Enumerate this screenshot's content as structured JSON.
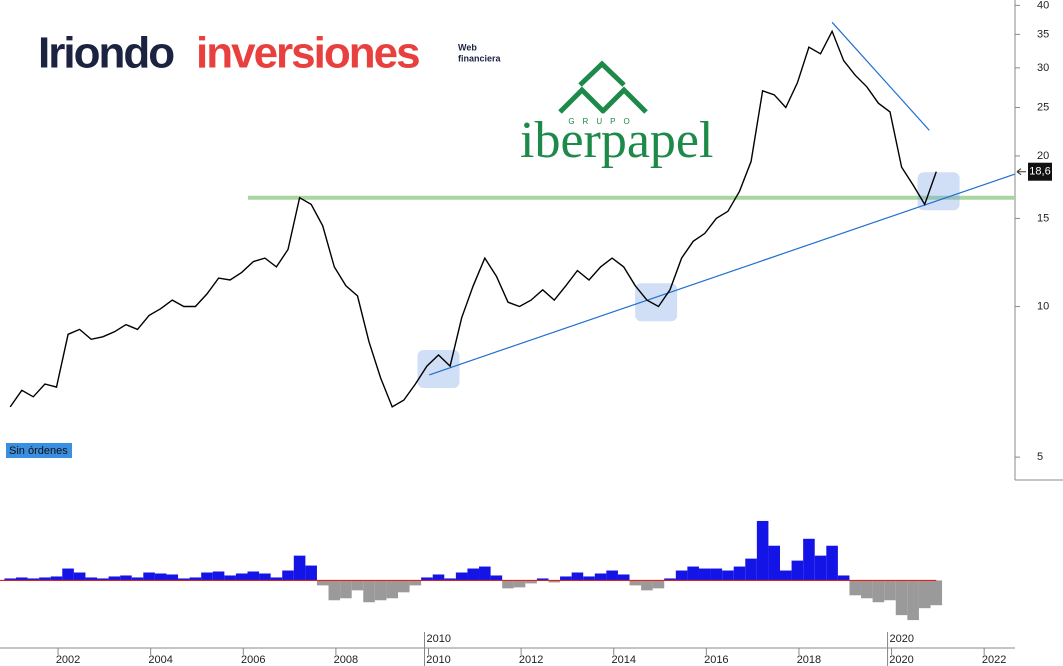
{
  "logos": {
    "brand_a": "Iriondo",
    "brand_b": "inversiones",
    "tag_1": "Web",
    "tag_2": "financiera",
    "group": "GRUPO",
    "company": "iberpapel"
  },
  "chart_data": [
    {
      "type": "line",
      "log_scale": true,
      "color": "#000000",
      "x": [
        2000.75,
        2001,
        2001.25,
        2001.5,
        2001.75,
        2002,
        2002.25,
        2002.5,
        2002.75,
        2003,
        2003.25,
        2003.5,
        2003.75,
        2004,
        2004.25,
        2004.5,
        2004.75,
        2005,
        2005.25,
        2005.5,
        2005.75,
        2006,
        2006.25,
        2006.5,
        2006.75,
        2007,
        2007.25,
        2007.5,
        2007.75,
        2008,
        2008.25,
        2008.5,
        2008.75,
        2009,
        2009.25,
        2009.5,
        2009.75,
        2010,
        2010.25,
        2010.5,
        2010.75,
        2011,
        2011.25,
        2011.5,
        2011.75,
        2012,
        2012.25,
        2012.5,
        2012.75,
        2013,
        2013.25,
        2013.5,
        2013.75,
        2014,
        2014.25,
        2014.5,
        2014.75,
        2015,
        2015.25,
        2015.5,
        2015.75,
        2016,
        2016.25,
        2016.5,
        2016.75,
        2017,
        2017.25,
        2017.5,
        2017.75,
        2018,
        2018.25,
        2018.5,
        2018.75,
        2019,
        2019.25,
        2019.5,
        2019.75,
        2020,
        2020.25,
        2020.5,
        2020.75
      ],
      "values": [
        6.3,
        6.8,
        6.6,
        7.0,
        6.9,
        8.8,
        9.0,
        8.6,
        8.7,
        8.9,
        9.2,
        9.0,
        9.6,
        9.9,
        10.3,
        10.0,
        10.0,
        10.6,
        11.4,
        11.3,
        11.7,
        12.3,
        12.5,
        12.0,
        13.0,
        16.5,
        16.0,
        14.5,
        12.0,
        11.0,
        10.5,
        8.5,
        7.2,
        6.3,
        6.5,
        7.0,
        7.6,
        8.0,
        7.6,
        9.5,
        11.0,
        12.5,
        11.5,
        10.2,
        10.0,
        10.3,
        10.8,
        10.3,
        11.0,
        11.8,
        11.3,
        12.0,
        12.5,
        12.0,
        11.0,
        10.3,
        10.0,
        10.8,
        12.5,
        13.5,
        14.0,
        15.0,
        15.5,
        17.0,
        19.5,
        27.0,
        26.5,
        25.0,
        28.0,
        33.0,
        32.0,
        35.5,
        31.0,
        29.0,
        27.5,
        25.5,
        24.5,
        19.0,
        17.5,
        16.0,
        18.6
      ],
      "xlim": [
        2000.53,
        2022.45
      ],
      "xticks": [
        2002,
        2004,
        2006,
        2008,
        2010,
        2012,
        2014,
        2016,
        2018,
        2020,
        2022
      ],
      "ylim": [
        4.5,
        41
      ],
      "yticks": [
        5,
        10,
        15,
        20,
        25,
        30,
        35,
        40
      ],
      "x_markers": [
        2010,
        2020
      ],
      "last_price": {
        "value": 18.6,
        "label": "18,6"
      },
      "status_label": "Sin órdenes",
      "support_level": 16.5,
      "trendlines": [
        {
          "x": [
            2009.8,
            2022.45
          ],
          "y": [
            7.3,
            18.4
          ],
          "color": "#1e6fd0"
        },
        {
          "x": [
            2018.5,
            2020.6
          ],
          "y": [
            37,
            22.5
          ],
          "color": "#1e6fd0"
        }
      ],
      "highlights": [
        {
          "x": 2010,
          "y": 7.5
        },
        {
          "x": 2014.7,
          "y": 10.2
        },
        {
          "x": 2020.8,
          "y": 17.0
        }
      ]
    },
    {
      "type": "bar",
      "color": "#1414e6",
      "neg_color": "#9a9a9a",
      "x": [
        2000.75,
        2001,
        2001.25,
        2001.5,
        2001.75,
        2002,
        2002.25,
        2002.5,
        2002.75,
        2003,
        2003.25,
        2003.5,
        2003.75,
        2004,
        2004.25,
        2004.5,
        2004.75,
        2005,
        2005.25,
        2005.5,
        2005.75,
        2006,
        2006.25,
        2006.5,
        2006.75,
        2007,
        2007.25,
        2007.5,
        2007.75,
        2008,
        2008.25,
        2008.5,
        2008.75,
        2009,
        2009.25,
        2009.5,
        2009.75,
        2010,
        2010.25,
        2010.5,
        2010.75,
        2011,
        2011.25,
        2011.5,
        2011.75,
        2012,
        2012.25,
        2012.5,
        2012.75,
        2013,
        2013.25,
        2013.5,
        2013.75,
        2014,
        2014.25,
        2014.5,
        2014.75,
        2015,
        2015.25,
        2015.5,
        2015.75,
        2016,
        2016.25,
        2016.5,
        2016.75,
        2017,
        2017.25,
        2017.5,
        2017.75,
        2018,
        2018.25,
        2018.5,
        2018.75,
        2019,
        2019.25,
        2019.5,
        2019.75,
        2020,
        2020.25,
        2020.5,
        2020.75
      ],
      "values": [
        2,
        3,
        2,
        3,
        4,
        12,
        8,
        3,
        2,
        4,
        5,
        3,
        8,
        7,
        6,
        2,
        3,
        8,
        9,
        5,
        7,
        9,
        7,
        3,
        10,
        25,
        15,
        -5,
        -20,
        -18,
        -10,
        -22,
        -20,
        -18,
        -12,
        -5,
        3,
        6,
        2,
        8,
        12,
        14,
        5,
        -8,
        -7,
        -3,
        2,
        -2,
        4,
        8,
        4,
        7,
        10,
        6,
        -5,
        -10,
        -8,
        2,
        10,
        14,
        12,
        12,
        10,
        14,
        22,
        60,
        35,
        10,
        20,
        42,
        25,
        35,
        5,
        -15,
        -18,
        -22,
        -20,
        -35,
        -40,
        -28,
        -25
      ],
      "ylim": [
        -50,
        66
      ]
    }
  ]
}
